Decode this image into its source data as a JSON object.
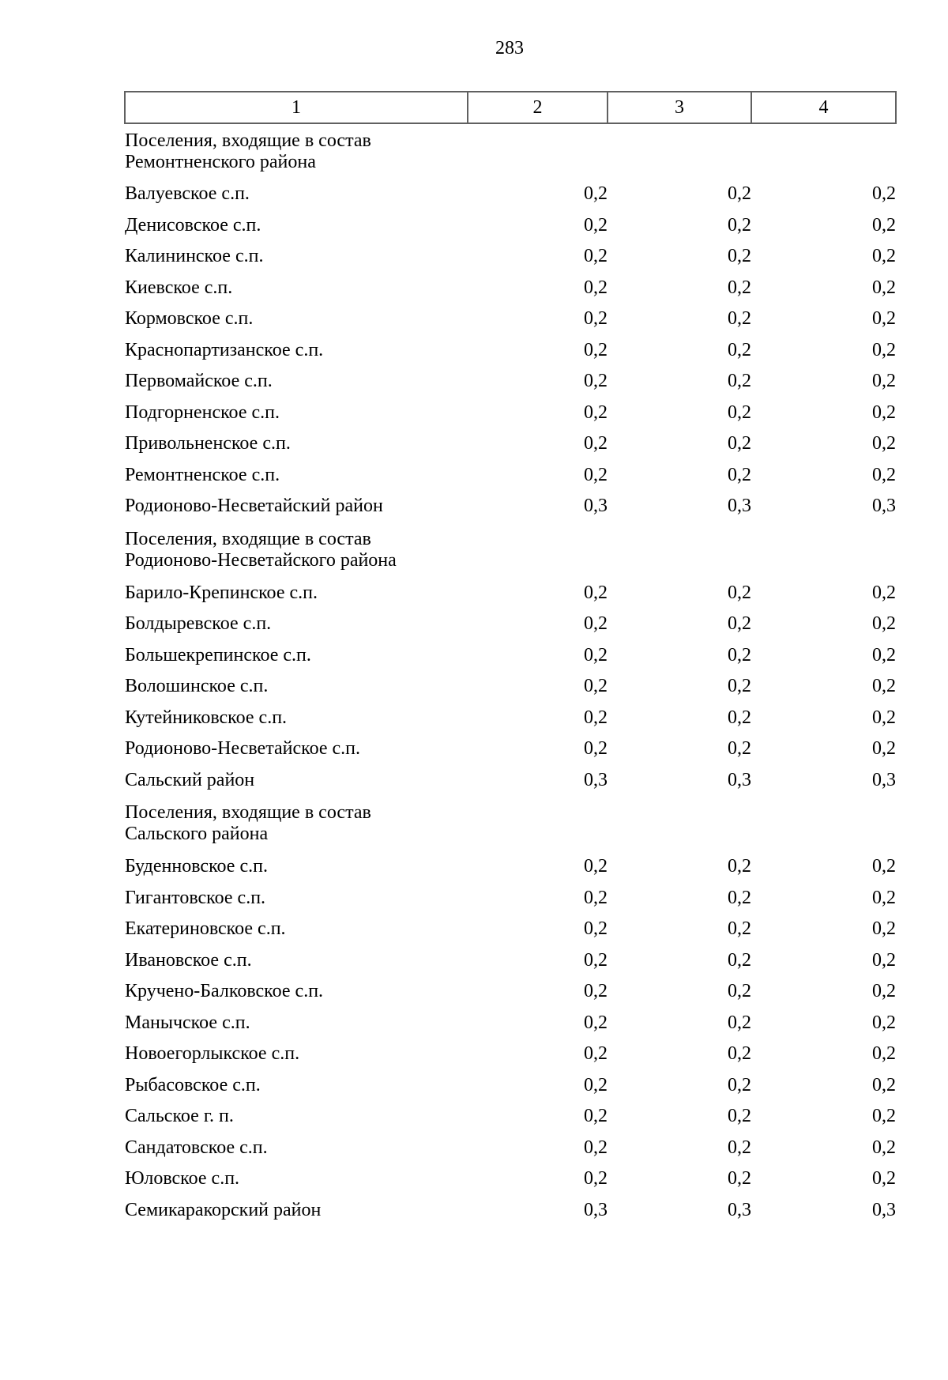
{
  "page": {
    "number": "283"
  },
  "colors": {
    "background": "#ffffff",
    "text": "#000000",
    "table_border": "#606060"
  },
  "table": {
    "column_headers": [
      "1",
      "2",
      "3",
      "4"
    ],
    "rows": [
      {
        "type": "group",
        "lines": [
          "Поселения, входящие в состав",
          "Ремонтненского района"
        ]
      },
      {
        "type": "data",
        "name": "Валуевское с.п.",
        "values": [
          "0,2",
          "0,2",
          "0,2"
        ]
      },
      {
        "type": "data",
        "name": "Денисовское с.п.",
        "values": [
          "0,2",
          "0,2",
          "0,2"
        ]
      },
      {
        "type": "data",
        "name": "Калининское с.п.",
        "values": [
          "0,2",
          "0,2",
          "0,2"
        ]
      },
      {
        "type": "data",
        "name": "Киевское с.п.",
        "values": [
          "0,2",
          "0,2",
          "0,2"
        ]
      },
      {
        "type": "data",
        "name": "Кормовское с.п.",
        "values": [
          "0,2",
          "0,2",
          "0,2"
        ]
      },
      {
        "type": "data",
        "name": "Краснопартизанское с.п.",
        "values": [
          "0,2",
          "0,2",
          "0,2"
        ]
      },
      {
        "type": "data",
        "name": "Первомайское с.п.",
        "values": [
          "0,2",
          "0,2",
          "0,2"
        ]
      },
      {
        "type": "data",
        "name": "Подгорненское с.п.",
        "values": [
          "0,2",
          "0,2",
          "0,2"
        ]
      },
      {
        "type": "data",
        "name": "Привольненское с.п.",
        "values": [
          "0,2",
          "0,2",
          "0,2"
        ]
      },
      {
        "type": "data",
        "name": "Ремонтненское с.п.",
        "values": [
          "0,2",
          "0,2",
          "0,2"
        ]
      },
      {
        "type": "data",
        "name": "Родионово-Несветайский район",
        "values": [
          "0,3",
          "0,3",
          "0,3"
        ]
      },
      {
        "type": "group",
        "lines": [
          "Поселения, входящие в состав",
          "Родионово-Несветайского района"
        ]
      },
      {
        "type": "data",
        "name": "Барило-Крепинское с.п.",
        "values": [
          "0,2",
          "0,2",
          "0,2"
        ]
      },
      {
        "type": "data",
        "name": "Болдыревское с.п.",
        "values": [
          "0,2",
          "0,2",
          "0,2"
        ]
      },
      {
        "type": "data",
        "name": "Большекрепинское с.п.",
        "values": [
          "0,2",
          "0,2",
          "0,2"
        ]
      },
      {
        "type": "data",
        "name": "Волошинское с.п.",
        "values": [
          "0,2",
          "0,2",
          "0,2"
        ]
      },
      {
        "type": "data",
        "name": "Кутейниковское с.п.",
        "values": [
          "0,2",
          "0,2",
          "0,2"
        ]
      },
      {
        "type": "data",
        "name": "Родионово-Несветайское с.п.",
        "values": [
          "0,2",
          "0,2",
          "0,2"
        ]
      },
      {
        "type": "data",
        "name": "Сальский район",
        "values": [
          "0,3",
          "0,3",
          "0,3"
        ]
      },
      {
        "type": "group",
        "lines": [
          "Поселения, входящие в состав",
          "Сальского района"
        ]
      },
      {
        "type": "data",
        "name": "Буденновское с.п.",
        "values": [
          "0,2",
          "0,2",
          "0,2"
        ]
      },
      {
        "type": "data",
        "name": "Гигантовское с.п.",
        "values": [
          "0,2",
          "0,2",
          "0,2"
        ]
      },
      {
        "type": "data",
        "name": "Екатериновское с.п.",
        "values": [
          "0,2",
          "0,2",
          "0,2"
        ]
      },
      {
        "type": "data",
        "name": "Ивановское с.п.",
        "values": [
          "0,2",
          "0,2",
          "0,2"
        ]
      },
      {
        "type": "data",
        "name": "Кручено-Балковское с.п.",
        "values": [
          "0,2",
          "0,2",
          "0,2"
        ]
      },
      {
        "type": "data",
        "name": "Манычское с.п.",
        "values": [
          "0,2",
          "0,2",
          "0,2"
        ]
      },
      {
        "type": "data",
        "name": "Новоегорлыкское с.п.",
        "values": [
          "0,2",
          "0,2",
          "0,2"
        ]
      },
      {
        "type": "data",
        "name": "Рыбасовское с.п.",
        "values": [
          "0,2",
          "0,2",
          "0,2"
        ]
      },
      {
        "type": "data",
        "name": "Сальское г. п.",
        "values": [
          "0,2",
          "0,2",
          "0,2"
        ]
      },
      {
        "type": "data",
        "name": "Сандатовское с.п.",
        "values": [
          "0,2",
          "0,2",
          "0,2"
        ]
      },
      {
        "type": "data",
        "name": "Юловское с.п.",
        "values": [
          "0,2",
          "0,2",
          "0,2"
        ]
      },
      {
        "type": "data",
        "name": "Семикаракорский район",
        "values": [
          "0,3",
          "0,3",
          "0,3"
        ]
      }
    ]
  }
}
